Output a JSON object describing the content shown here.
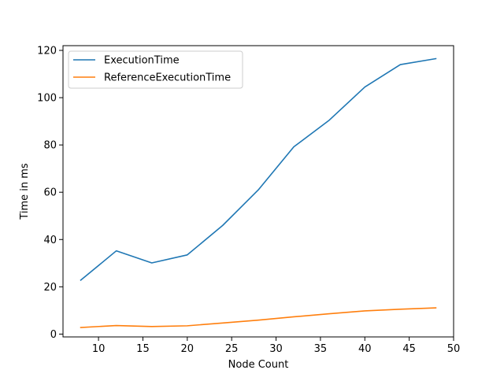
{
  "chart_data": {
    "type": "line",
    "title": "",
    "xlabel": "Node Count",
    "ylabel": "Time in ms",
    "xlim": [
      6,
      50
    ],
    "ylim": [
      -1.2,
      122
    ],
    "xticks": [
      10,
      15,
      20,
      25,
      30,
      35,
      40,
      45,
      50
    ],
    "yticks": [
      0,
      20,
      40,
      60,
      80,
      100,
      120
    ],
    "grid": false,
    "legend_position": "upper-left",
    "x": [
      8,
      12,
      16,
      20,
      24,
      28,
      32,
      36,
      40,
      44,
      48
    ],
    "series": [
      {
        "name": "ExecutionTime",
        "color": "#1f77b4",
        "values": [
          22.8,
          35.2,
          30.1,
          33.5,
          46.0,
          61.0,
          79.2,
          90.5,
          104.5,
          114.0,
          116.5
        ]
      },
      {
        "name": "ReferenceExecutionTime",
        "color": "#ff7f0e",
        "values": [
          2.8,
          3.6,
          3.2,
          3.5,
          4.7,
          5.9,
          7.3,
          8.6,
          9.8,
          10.5,
          11.1
        ]
      }
    ]
  }
}
